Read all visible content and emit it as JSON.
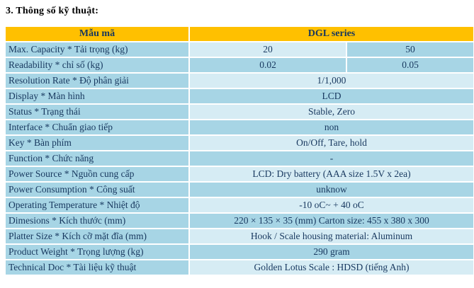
{
  "page": {
    "title": "3. Thông số kỹ thuật:"
  },
  "colors": {
    "header_bg": "#FFC000",
    "cell_medium": "#A7D5E5",
    "cell_light": "#D6ECF4",
    "text_dark": "#17375E",
    "border": "#FFFFFF"
  },
  "table": {
    "header": {
      "left": "Mẫu mã",
      "right": "DGL series"
    },
    "rows": [
      {
        "label": "Max. Capacity * Tải trọng (kg)",
        "values": [
          "20",
          "50"
        ],
        "shades": [
          "light",
          "medium"
        ]
      },
      {
        "label": "Readability * chỉ số (kg)",
        "values": [
          "0.02",
          "0.05"
        ],
        "shades": [
          "medium",
          "medium"
        ]
      },
      {
        "label": "Resolution Rate * Độ phân giải",
        "values": [
          "1/1,000"
        ],
        "shades": [
          "light"
        ]
      },
      {
        "label": "Display * Màn hình",
        "values": [
          "LCD"
        ],
        "shades": [
          "medium"
        ]
      },
      {
        "label": "Status * Trạng thái",
        "values": [
          "Stable, Zero"
        ],
        "shades": [
          "light"
        ]
      },
      {
        "label": "Interface * Chuẩn giao tiếp",
        "values": [
          "non"
        ],
        "shades": [
          "medium"
        ]
      },
      {
        "label": "Key * Bàn phím",
        "values": [
          "On/Off, Tare, hold"
        ],
        "shades": [
          "light"
        ]
      },
      {
        "label": "Function * Chức năng",
        "values": [
          "-"
        ],
        "shades": [
          "medium"
        ]
      },
      {
        "label": "Power Source * Nguồn cung cấp",
        "values": [
          "LCD: Dry battery (AAA size 1.5V x 2ea)"
        ],
        "shades": [
          "light"
        ]
      },
      {
        "label": "Power Consumption * Công suất",
        "values": [
          "unknow"
        ],
        "shades": [
          "medium"
        ]
      },
      {
        "label": "Operating Temperature * Nhiệt độ",
        "values": [
          "-10 oC~ + 40 oC"
        ],
        "shades": [
          "light"
        ]
      },
      {
        "label": "Dimesions * Kích thước (mm)",
        "values": [
          "220 × 135 × 35 (mm) Carton size: 455 x 380 x 300"
        ],
        "shades": [
          "medium"
        ]
      },
      {
        "label": "Platter Size * Kích cỡ mặt đĩa (mm)",
        "values": [
          "Hook / Scale housing material: Aluminum"
        ],
        "shades": [
          "light"
        ]
      },
      {
        "label": "Product Weight * Trọng lượng (kg)",
        "values": [
          "290 gram"
        ],
        "shades": [
          "medium"
        ]
      },
      {
        "label": "Technical Doc  *  Tài liệu kỹ thuật",
        "values": [
          "Golden Lotus Scale : HDSD (tiếng Anh)"
        ],
        "shades": [
          "light"
        ]
      }
    ]
  }
}
